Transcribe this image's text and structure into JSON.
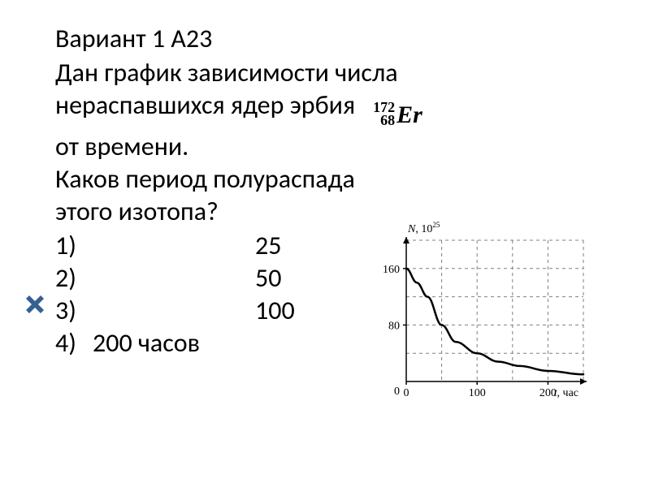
{
  "title": "Вариант 1 А23",
  "lines": {
    "l1": "Дан график зависимости числа",
    "l2": "нераспавшихся ядер эрбия",
    "l3": "от времени.",
    "l4": "Каков период полураспада",
    "l5": "этого изотопа?"
  },
  "isotope": {
    "mass": "172",
    "z": "68",
    "sym": "Er"
  },
  "options": [
    {
      "n": "1)",
      "v": "25"
    },
    {
      "n": "2)",
      "v": "50"
    },
    {
      "n": "3)",
      "v": "100"
    },
    {
      "n": "4)",
      "v": "200 часов"
    }
  ],
  "chart": {
    "type": "line",
    "background_color": "#ffffff",
    "axis_color": "#000000",
    "grid_color": "#808080",
    "curve_color": "#000000",
    "curve_width": 2.5,
    "title_fontsize": 14,
    "tick_fontsize": 14,
    "y_label": "N, 10",
    "y_label_sup": "25",
    "x_label": "t, час",
    "xlim": [
      0,
      250
    ],
    "ylim": [
      0,
      200
    ],
    "xticks": [
      0,
      50,
      100,
      150,
      200,
      250
    ],
    "xtick_labels": {
      "0": "0",
      "100": "100",
      "200": "200"
    },
    "yticks": [
      0,
      40,
      80,
      120,
      160,
      200
    ],
    "ytick_labels": {
      "80": "80",
      "160": "160"
    },
    "grid_dash": "4,4",
    "points": [
      [
        0,
        160
      ],
      [
        15,
        140
      ],
      [
        30,
        120
      ],
      [
        50,
        80
      ],
      [
        70,
        56
      ],
      [
        100,
        40
      ],
      [
        130,
        28
      ],
      [
        160,
        22
      ],
      [
        200,
        15
      ],
      [
        250,
        10
      ]
    ]
  },
  "colors": {
    "text": "#000000",
    "cross": "#376092"
  }
}
